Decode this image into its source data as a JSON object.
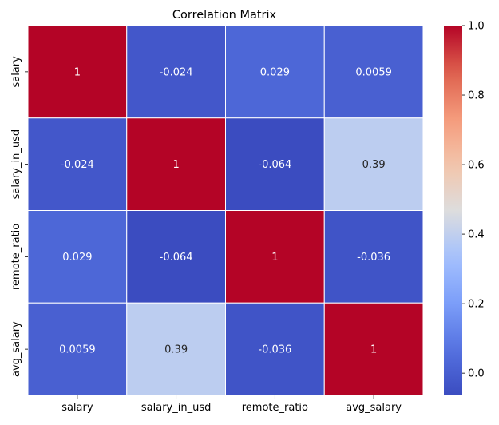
{
  "chart_data": {
    "type": "heatmap",
    "title": "Correlation Matrix",
    "rows": [
      "salary",
      "salary_in_usd",
      "remote_ratio",
      "avg_salary"
    ],
    "columns": [
      "salary",
      "salary_in_usd",
      "remote_ratio",
      "avg_salary"
    ],
    "values": [
      [
        1,
        -0.024,
        0.029,
        0.0059
      ],
      [
        -0.024,
        1,
        -0.064,
        0.39
      ],
      [
        0.029,
        -0.064,
        1,
        -0.036
      ],
      [
        0.0059,
        0.39,
        -0.036,
        1
      ]
    ],
    "labels": [
      [
        "1",
        "-0.024",
        "0.029",
        "0.0059"
      ],
      [
        "-0.024",
        "1",
        "-0.064",
        "0.39"
      ],
      [
        "0.029",
        "-0.064",
        "1",
        "-0.036"
      ],
      [
        "0.0059",
        "0.39",
        "-0.036",
        "1"
      ]
    ],
    "colormap": "coolwarm",
    "colorbar": {
      "range": [
        -0.064,
        1.0
      ],
      "ticks": [
        0.0,
        0.2,
        0.4,
        0.6,
        0.8,
        1.0
      ],
      "tick_labels": [
        "0.0",
        "0.2",
        "0.4",
        "0.6",
        "0.8",
        "1.0"
      ]
    },
    "grid": false
  }
}
